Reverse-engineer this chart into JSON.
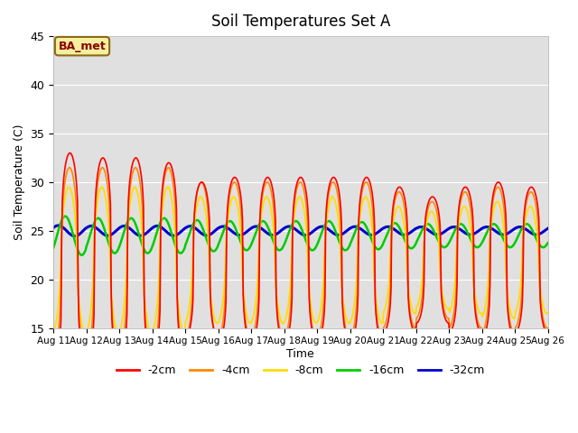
{
  "title": "Soil Temperatures Set A",
  "xlabel": "Time",
  "ylabel": "Soil Temperature (C)",
  "ylim": [
    15,
    45
  ],
  "xtick_labels": [
    "Aug 11",
    "Aug 12",
    "Aug 13",
    "Aug 14",
    "Aug 15",
    "Aug 16",
    "Aug 17",
    "Aug 18",
    "Aug 19",
    "Aug 20",
    "Aug 21",
    "Aug 22",
    "Aug 23",
    "Aug 24",
    "Aug 25",
    "Aug 26"
  ],
  "colors": {
    "-2cm": "#ff0000",
    "-4cm": "#ff8800",
    "-8cm": "#ffdd00",
    "-16cm": "#00cc00",
    "-32cm": "#0000cc"
  },
  "legend_label": "BA_met",
  "background_color": "#e0e0e0",
  "n_days": 15,
  "hours_per_day": 48,
  "series": {
    "-2cm": {
      "base": 22.0,
      "amps": [
        11.0,
        10.5,
        10.5,
        10.0,
        8.0,
        8.5,
        8.5,
        8.5,
        8.5,
        8.5,
        7.5,
        6.5,
        7.5,
        8.0,
        7.5
      ],
      "phase": 0.0,
      "sharpness": 3.5
    },
    "-4cm": {
      "base": 22.0,
      "amps": [
        9.5,
        9.5,
        9.5,
        9.5,
        8.0,
        8.0,
        8.0,
        8.0,
        8.0,
        8.0,
        7.0,
        6.0,
        7.0,
        7.5,
        7.0
      ],
      "phase": 0.08,
      "sharpness": 2.5
    },
    "-8cm": {
      "base": 22.0,
      "amps": [
        7.5,
        7.5,
        7.5,
        7.5,
        6.5,
        6.5,
        6.5,
        6.5,
        6.5,
        6.5,
        5.5,
        5.0,
        5.5,
        6.0,
        5.5
      ],
      "phase": 0.2,
      "sharpness": 1.8
    },
    "-16cm": {
      "base": 24.5,
      "amps": [
        2.0,
        1.8,
        1.8,
        1.8,
        1.6,
        1.5,
        1.5,
        1.5,
        1.5,
        1.4,
        1.3,
        1.2,
        1.2,
        1.2,
        1.2
      ],
      "phase": 0.9,
      "sharpness": 1.0
    },
    "-32cm": {
      "base": 25.0,
      "amps": [
        0.55,
        0.5,
        0.5,
        0.5,
        0.48,
        0.45,
        0.45,
        0.45,
        0.44,
        0.43,
        0.42,
        0.4,
        0.4,
        0.4,
        0.4
      ],
      "phase": 2.2,
      "sharpness": 1.0
    }
  }
}
